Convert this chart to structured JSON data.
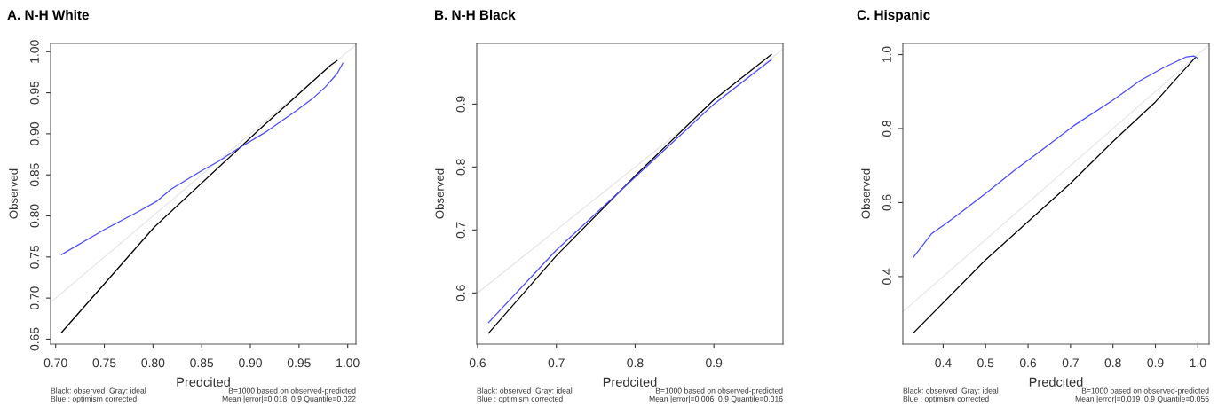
{
  "chart_data": [
    {
      "type": "line",
      "title": "A. N-H White",
      "xlabel": "Predcited",
      "ylabel": "Observed",
      "grid": false,
      "xlim": [
        0.6948,
        1.0085
      ],
      "ylim": [
        0.644,
        1.01
      ],
      "xticks": [
        {
          "value": 0.7,
          "label": "0.70"
        },
        0.75,
        {
          "value": 0.8,
          "label": "0.80"
        },
        0.85,
        {
          "value": 0.9,
          "label": "0.90"
        },
        0.95,
        {
          "value": 1.0,
          "label": "1.00"
        }
      ],
      "yticks": [
        0.65,
        {
          "value": 0.7,
          "label": "0.70"
        },
        0.75,
        {
          "value": 0.8,
          "label": "0.80"
        },
        0.85,
        {
          "value": 0.9,
          "label": "0.90"
        },
        0.95,
        {
          "value": 1.0,
          "label": "1.00"
        }
      ],
      "series": [
        {
          "color": "#e6e6e6",
          "x": [
            0.695,
            1.008
          ],
          "values": [
            0.695,
            1.008
          ]
        },
        {
          "color": "#000000",
          "x": [
            0.706,
            0.801,
            0.91,
            0.983,
            0.989
          ],
          "values": [
            0.658,
            0.786,
            0.906,
            0.984,
            0.989
          ]
        },
        {
          "color": "#4a4aff",
          "x": [
            0.706,
            0.7495,
            0.786,
            0.804,
            0.819,
            0.85,
            0.868,
            0.886,
            0.917,
            0.947,
            0.965,
            0.977,
            0.989,
            0.995
          ],
          "values": [
            0.753,
            0.783,
            0.806,
            0.818,
            0.833,
            0.855,
            0.867,
            0.881,
            0.903,
            0.928,
            0.944,
            0.957,
            0.973,
            0.986
          ]
        }
      ],
      "annotations": [
        "Black: observed  Gray: ideal\nBlue : optimism corrected",
        "B=1000 based on observed-predicted\nMean |error|=0.018  0.9 Quantile=0.022"
      ]
    },
    {
      "type": "line",
      "title": "B. N-H Black",
      "xlabel": "Predcited",
      "ylabel": "Observed",
      "grid": false,
      "xlim": [
        0.5989,
        0.9877
      ],
      "ylim": [
        0.5187,
        0.9964
      ],
      "xticks": [
        0.6,
        0.7,
        0.8,
        0.9
      ],
      "yticks": [
        0.6,
        0.7,
        0.8,
        0.9
      ],
      "series": [
        {
          "color": "#e6e6e6",
          "x": [
            0.599,
            0.987
          ],
          "values": [
            0.599,
            0.987
          ]
        },
        {
          "color": "#000000",
          "x": [
            0.614,
            0.7,
            0.8,
            0.9,
            0.973
          ],
          "values": [
            0.536,
            0.659,
            0.786,
            0.907,
            0.979
          ]
        },
        {
          "color": "#4a4aff",
          "x": [
            0.614,
            0.7,
            0.8,
            0.9,
            0.973
          ],
          "values": [
            0.553,
            0.668,
            0.784,
            0.9,
            0.971
          ]
        }
      ],
      "annotations": [
        "Black: observed  Gray: ideal\nBlue : optimism corrected",
        "B=1000 based on observed-predicted\nMean |error|=0.006  0.9 Quantile=0.016"
      ]
    },
    {
      "type": "line",
      "title": "C. Hispanic",
      "xlabel": "Predcited",
      "ylabel": "Observed",
      "grid": false,
      "xlim": [
        0.305,
        1.0265
      ],
      "ylim": [
        0.2176,
        1.03
      ],
      "xticks": [
        0.4,
        0.5,
        0.6,
        0.7,
        0.8,
        0.9,
        {
          "value": 1.0,
          "label": "1.0"
        }
      ],
      "yticks": [
        0.4,
        0.6,
        0.8,
        {
          "value": 1.0,
          "label": "1.0"
        }
      ],
      "series": [
        {
          "color": "#e6e6e6",
          "x": [
            0.305,
            1.026
          ],
          "values": [
            0.305,
            1.026
          ]
        },
        {
          "color": "#000000",
          "x": [
            0.33,
            0.499,
            0.7,
            0.799,
            0.9,
            0.994
          ],
          "values": [
            0.248,
            0.444,
            0.652,
            0.764,
            0.872,
            0.992
          ]
        },
        {
          "color": "#4a4aff",
          "x": [
            0.33,
            0.373,
            0.422,
            0.499,
            0.569,
            0.639,
            0.708,
            0.799,
            0.862,
            0.918,
            0.973,
            0.991,
            1.0
          ],
          "values": [
            0.452,
            0.516,
            0.556,
            0.624,
            0.688,
            0.748,
            0.808,
            0.876,
            0.928,
            0.964,
            0.994,
            0.996,
            0.99
          ]
        }
      ],
      "annotations": [
        "Black: observed  Gray: ideal\nBlue : optimism corrected",
        "B=1000 based on observed-predicted\nMean |error|=0.019  0.9 Quantile=0.055"
      ]
    }
  ]
}
